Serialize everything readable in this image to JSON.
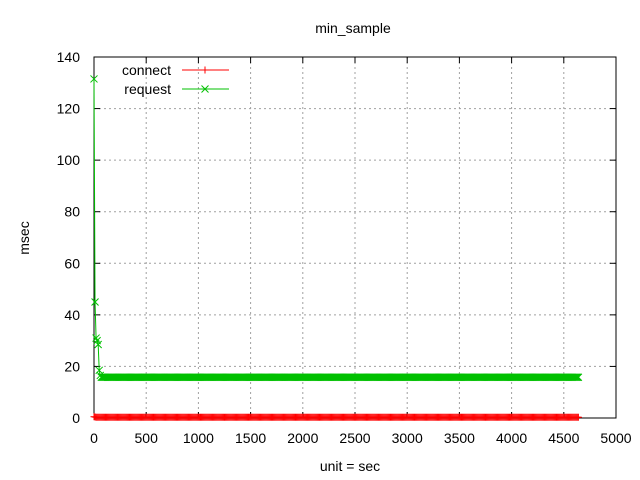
{
  "chart_data": {
    "type": "line",
    "title": "min_sample",
    "xlabel": "unit = sec",
    "ylabel": "msec",
    "xlim": [
      0,
      5000
    ],
    "ylim": [
      0,
      140
    ],
    "xticks": [
      0,
      500,
      1000,
      1500,
      2000,
      2500,
      3000,
      3500,
      4000,
      4500,
      5000
    ],
    "yticks": [
      0,
      20,
      40,
      60,
      80,
      100,
      120,
      140
    ],
    "xtick_labels": [
      "0",
      "500",
      "1000",
      "1500",
      "2000",
      "2500",
      "3000",
      "3500",
      "4000",
      "4500",
      "5000"
    ],
    "ytick_labels": [
      "0",
      "20",
      "40",
      "60",
      "80",
      "100",
      "120",
      "140"
    ],
    "grid": true,
    "legend_position": "top-left",
    "series": [
      {
        "name": "connect",
        "color": "#ff0000",
        "marker": "plus",
        "x_start": 0,
        "x_end": 4640,
        "x_step": 10,
        "points": [
          [
            0,
            0.5
          ],
          [
            10,
            0.4
          ],
          [
            20,
            0.3
          ],
          [
            4640,
            0.3
          ]
        ],
        "default_y": 0.3
      },
      {
        "name": "request",
        "color": "#00c000",
        "marker": "cross",
        "x_start": 0,
        "x_end": 4640,
        "x_step": 10,
        "points": [
          [
            0,
            131.5
          ],
          [
            10,
            45
          ],
          [
            20,
            31
          ],
          [
            30,
            30
          ],
          [
            40,
            28.5
          ],
          [
            50,
            18.5
          ],
          [
            60,
            16.5
          ],
          [
            70,
            15.8
          ],
          [
            4640,
            15.8
          ]
        ],
        "default_y": 15.8
      }
    ]
  }
}
